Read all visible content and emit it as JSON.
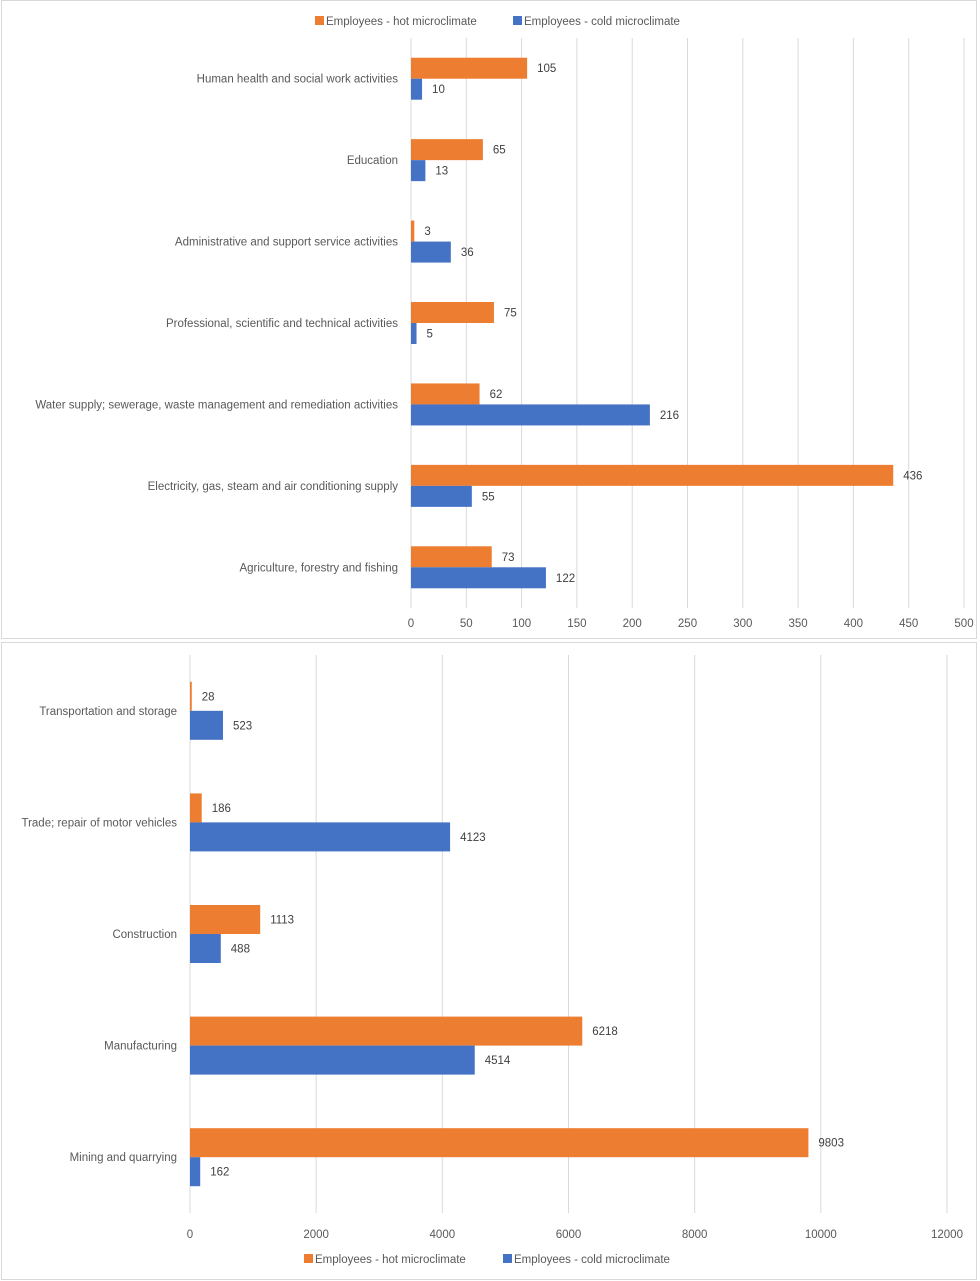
{
  "colors": {
    "hot": "#ED7D31",
    "cold": "#4472C4",
    "grid": "#D9D9D9"
  },
  "chart_data": [
    {
      "type": "bar",
      "orientation": "horizontal",
      "title": "",
      "xlabel": "",
      "ylabel": "",
      "legend_position": "top",
      "grid": true,
      "xlim": [
        0,
        500
      ],
      "xticks": [
        0,
        50,
        100,
        150,
        200,
        250,
        300,
        350,
        400,
        450,
        500
      ],
      "categories": [
        "Human health and social work activities",
        "Education",
        "Administrative and support service activities",
        "Professional, scientific and technical activities",
        "Water supply; sewerage, waste management  and remediation activities",
        "Electricity, gas, steam and air conditioning supply",
        "Agriculture, forestry and fishing"
      ],
      "series": [
        {
          "name": "Employees - hot microclimate",
          "color": "#ED7D31",
          "values": [
            105,
            65,
            3,
            75,
            62,
            436,
            73
          ]
        },
        {
          "name": "Employees - cold microclimate",
          "color": "#4472C4",
          "values": [
            10,
            13,
            36,
            5,
            216,
            55,
            122
          ]
        }
      ]
    },
    {
      "type": "bar",
      "orientation": "horizontal",
      "title": "",
      "xlabel": "",
      "ylabel": "",
      "legend_position": "bottom",
      "grid": true,
      "xlim": [
        0,
        12000
      ],
      "xticks": [
        0,
        2000,
        4000,
        6000,
        8000,
        10000,
        12000
      ],
      "categories": [
        "Transportation and storage",
        "Trade; repair of motor vehicles",
        "Construction",
        "Manufacturing",
        "Mining and quarrying"
      ],
      "series": [
        {
          "name": "Employees - hot microclimate",
          "color": "#ED7D31",
          "values": [
            28,
            186,
            1113,
            6218,
            9803
          ]
        },
        {
          "name": "Employees - cold microclimate",
          "color": "#4472C4",
          "values": [
            523,
            4123,
            488,
            4514,
            162
          ]
        }
      ]
    }
  ]
}
